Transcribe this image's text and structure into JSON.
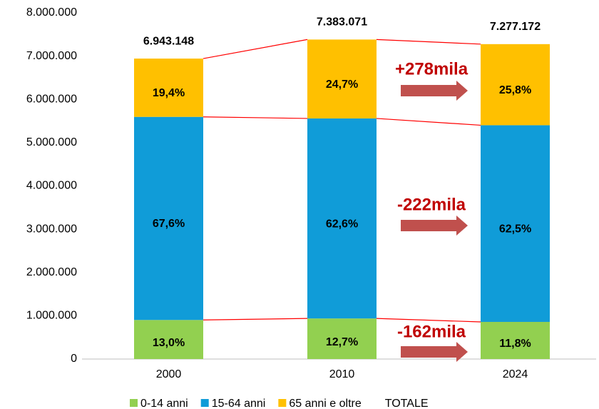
{
  "chart_data": {
    "type": "stacked_bar",
    "categories": [
      "2000",
      "2010",
      "2024"
    ],
    "series": [
      {
        "name": "0-14 anni",
        "color": "#92d050",
        "values": [
          902609,
          937650,
          858000
        ],
        "value_labels": [
          "13,0%",
          "12,7%",
          "11,8%"
        ]
      },
      {
        "name": "15-64 anni",
        "color": "#109cd8",
        "values": [
          4693568,
          4621802,
          4545272
        ],
        "value_labels": [
          "67,6%",
          "62,6%",
          "62,5%"
        ]
      },
      {
        "name": "65 anni e oltre",
        "color": "#ffc000",
        "values": [
          1346971,
          1823619,
          1873900
        ],
        "value_labels": [
          "19,4%",
          "24,7%",
          "25,8%"
        ]
      }
    ],
    "totals": {
      "name": "TOTALE",
      "values": [
        6943148,
        7383071,
        7277172
      ],
      "value_labels": [
        "6.943.148",
        "7.383.071",
        "7.277.172"
      ]
    },
    "annotations": [
      "+278mila",
      "-222mila",
      "-162mila"
    ],
    "ylim": [
      0,
      8000000
    ],
    "yticks": [
      {
        "value": 0,
        "label": "0"
      },
      {
        "value": 1000000,
        "label": "1.000.000"
      },
      {
        "value": 2000000,
        "label": "2.000.000"
      },
      {
        "value": 3000000,
        "label": "3.000.000"
      },
      {
        "value": 4000000,
        "label": "4.000.000"
      },
      {
        "value": 5000000,
        "label": "5.000.000"
      },
      {
        "value": 6000000,
        "label": "6.000.000"
      },
      {
        "value": 7000000,
        "label": "7.000.000"
      },
      {
        "value": 8000000,
        "label": "8.000.000"
      }
    ],
    "grid": false
  }
}
